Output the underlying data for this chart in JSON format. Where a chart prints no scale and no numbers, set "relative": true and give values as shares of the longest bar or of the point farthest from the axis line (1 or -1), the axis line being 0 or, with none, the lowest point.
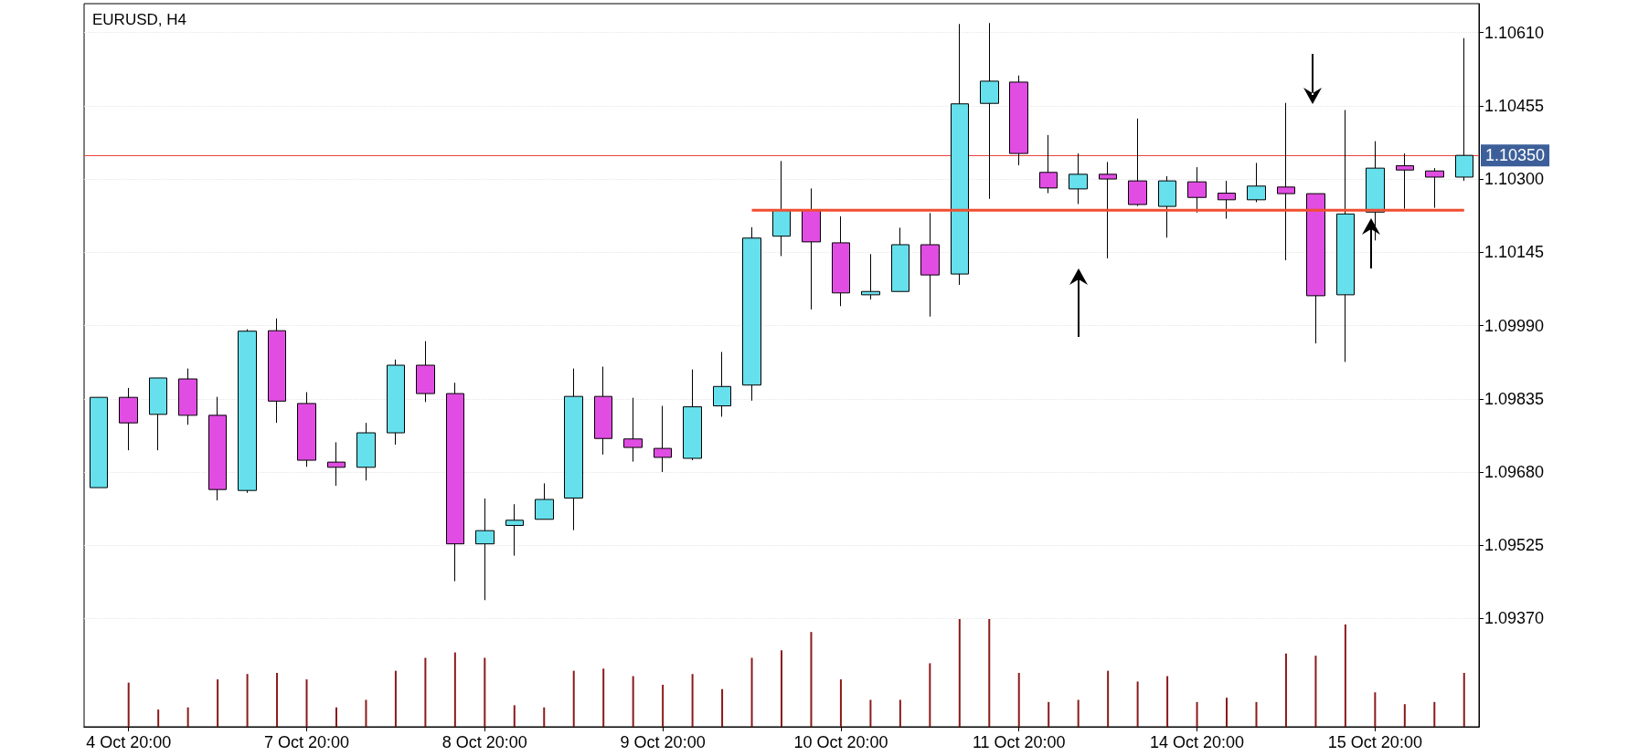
{
  "chart_data": [
    {
      "type": "candlestick",
      "title": "EURUSD, H4",
      "categories": [
        null,
        "4 Oct 20:00",
        null,
        null,
        null,
        null,
        null,
        "7 Oct 20:00",
        null,
        null,
        null,
        null,
        null,
        "8 Oct 20:00",
        null,
        null,
        null,
        null,
        null,
        "9 Oct 20:00",
        null,
        null,
        null,
        null,
        null,
        "10 Oct 20:00",
        null,
        null,
        null,
        null,
        null,
        "11 Oct 20:00",
        null,
        null,
        null,
        null,
        null,
        "14 Oct 20:00",
        null,
        null,
        null,
        null,
        null,
        "15 Oct 20:00",
        null,
        null,
        null
      ],
      "ohlc": [
        [
          1.09647,
          1.09838,
          1.09647,
          1.09838
        ],
        [
          1.09838,
          1.09858,
          1.09726,
          1.09784
        ],
        [
          1.09802,
          1.09879,
          1.09726,
          1.09879
        ],
        [
          1.09877,
          1.09899,
          1.0978,
          1.098
        ],
        [
          1.098,
          1.09839,
          1.0962,
          1.09643
        ],
        [
          1.09641,
          1.09982,
          1.09636,
          1.09978
        ],
        [
          1.09979,
          1.10005,
          1.09784,
          1.0983
        ],
        [
          1.09825,
          1.09849,
          1.09691,
          1.09705
        ],
        [
          1.09701,
          1.09743,
          1.09651,
          1.0969
        ],
        [
          1.0969,
          1.09784,
          1.09662,
          1.09763
        ],
        [
          1.09763,
          1.09918,
          1.09738,
          1.09906
        ],
        [
          1.09906,
          1.09957,
          1.09828,
          1.09846
        ],
        [
          1.09846,
          1.09869,
          1.09449,
          1.09528
        ],
        [
          1.09528,
          1.09624,
          1.09409,
          1.09556
        ],
        [
          1.09567,
          1.09612,
          1.09503,
          1.09578
        ],
        [
          1.0958,
          1.09656,
          1.0958,
          1.09622
        ],
        [
          1.09625,
          1.09899,
          1.09557,
          1.0984
        ],
        [
          1.0984,
          1.09903,
          1.09717,
          1.09751
        ],
        [
          1.0975,
          1.09837,
          1.09702,
          1.09732
        ],
        [
          1.0973,
          1.0982,
          1.0968,
          1.09711
        ],
        [
          1.09709,
          1.09897,
          1.09705,
          1.09818
        ],
        [
          1.0982,
          1.09934,
          1.09797,
          1.09861
        ],
        [
          1.09864,
          1.10198,
          1.09831,
          1.10175
        ],
        [
          1.10179,
          1.10338,
          1.10137,
          1.10234
        ],
        [
          1.10234,
          1.1028,
          1.10024,
          1.10167
        ],
        [
          1.10165,
          1.10221,
          1.10031,
          1.10059
        ],
        [
          1.10055,
          1.10141,
          1.10045,
          1.10062
        ],
        [
          1.10062,
          1.10197,
          1.10062,
          1.10161
        ],
        [
          1.10161,
          1.10228,
          1.10009,
          1.10097
        ],
        [
          1.10099,
          1.10628,
          1.10076,
          1.10459
        ],
        [
          1.1046,
          1.1063,
          1.10258,
          1.10507
        ],
        [
          1.10505,
          1.10519,
          1.10329,
          1.10354
        ],
        [
          1.10314,
          1.10393,
          1.1027,
          1.10281
        ],
        [
          1.10279,
          1.10354,
          1.10247,
          1.1031
        ],
        [
          1.1031,
          1.10336,
          1.10132,
          1.103
        ],
        [
          1.10296,
          1.10428,
          1.10243,
          1.10246
        ],
        [
          1.10242,
          1.10306,
          1.10176,
          1.10296
        ],
        [
          1.10294,
          1.10325,
          1.10229,
          1.10261
        ],
        [
          1.1027,
          1.10296,
          1.10216,
          1.10256
        ],
        [
          1.10256,
          1.10334,
          1.10251,
          1.10285
        ],
        [
          1.10283,
          1.10461,
          1.10128,
          1.10269
        ],
        [
          1.10269,
          1.10269,
          1.09952,
          1.10053
        ],
        [
          1.10055,
          1.10446,
          1.09913,
          1.10226
        ],
        [
          1.1023,
          1.1038,
          1.1017,
          1.10323
        ],
        [
          1.10328,
          1.10354,
          1.10237,
          1.10319
        ],
        [
          1.10317,
          1.10323,
          1.10239,
          1.10304
        ],
        [
          1.10304,
          1.10598,
          1.10296,
          1.1035
        ]
      ],
      "colors": [
        "#66e0ec",
        "#e14de3",
        "#66e0ec",
        "#e14de3",
        "#e14de3",
        "#66e0ec",
        "#e14de3",
        "#e14de3",
        "#e14de3",
        "#66e0ec",
        "#66e0ec",
        "#e14de3",
        "#e14de3",
        "#66e0ec",
        "#66e0ec",
        "#66e0ec",
        "#66e0ec",
        "#e14de3",
        "#e14de3",
        "#e14de3",
        "#66e0ec",
        "#66e0ec",
        "#66e0ec",
        "#66e0ec",
        "#e14de3",
        "#e14de3",
        "#66e0ec",
        "#66e0ec",
        "#e14de3",
        "#66e0ec",
        "#66e0ec",
        "#e14de3",
        "#e14de3",
        "#66e0ec",
        "#e14de3",
        "#e14de3",
        "#66e0ec",
        "#e14de3",
        "#e14de3",
        "#66e0ec",
        "#e14de3",
        "#e14de3",
        "#66e0ec",
        "#66e0ec",
        "#e14de3",
        "#e14de3",
        "#66e0ec"
      ],
      "series": [
        {
          "type": "line",
          "color": "#f04e30",
          "marker": "none",
          "values": [
            null,
            null,
            null,
            null,
            null,
            null,
            null,
            null,
            null,
            null,
            null,
            null,
            null,
            null,
            null,
            null,
            null,
            null,
            null,
            null,
            null,
            null,
            1.10234,
            1.10234,
            1.10234,
            1.10234,
            1.10234,
            1.10234,
            1.10234,
            1.10234,
            1.10234,
            1.10234,
            1.10234,
            1.10234,
            1.10234,
            1.10234,
            1.10234,
            1.10234,
            1.10234,
            1.10234,
            1.10234,
            1.10234,
            1.10234,
            1.10234,
            1.10234,
            1.10234,
            1.10234
          ]
        }
      ],
      "ylim": [
        1.09141,
        1.10671
      ],
      "yticks": [
        {
          "value": 1.0937,
          "label": "1.09370"
        },
        {
          "value": 1.09525,
          "label": "1.09525"
        },
        {
          "value": 1.0968,
          "label": "1.09680"
        },
        {
          "value": 1.09835,
          "label": "1.09835"
        },
        {
          "value": 1.0999,
          "label": "1.09990"
        },
        {
          "value": 1.10145,
          "label": "1.10145"
        },
        {
          "value": 1.103,
          "label": "1.10300"
        },
        {
          "value": 1.10455,
          "label": "1.10455"
        },
        {
          "value": 1.1061,
          "label": "1.10610"
        }
      ],
      "ref_lines": [
        {
          "axis": "y",
          "value": 1.1035,
          "label": "1.10350",
          "color": "#e8453c"
        }
      ],
      "grid": "y"
    },
    {
      "type": "bar",
      "relative": true,
      "color": "#8b1a1a",
      "categories": [
        null,
        null,
        null,
        null,
        null,
        null,
        null,
        null,
        null,
        null,
        null,
        null,
        null,
        null,
        null,
        null,
        null,
        null,
        null,
        null,
        null,
        null,
        null,
        null,
        null,
        null,
        null,
        null,
        null,
        null,
        null,
        null,
        null,
        null,
        null,
        null,
        null,
        null,
        null,
        null,
        null,
        null,
        null,
        null,
        null,
        null,
        null
      ],
      "values": [
        null,
        0.41,
        0.16,
        0.18,
        0.44,
        0.49,
        0.5,
        0.44,
        0.18,
        0.25,
        0.52,
        0.64,
        0.69,
        0.64,
        0.2,
        0.18,
        0.52,
        0.54,
        0.47,
        0.39,
        0.49,
        0.35,
        0.64,
        0.71,
        0.88,
        0.44,
        0.25,
        0.25,
        0.59,
        1,
        1,
        0.5,
        0.23,
        0.25,
        0.52,
        0.42,
        0.47,
        0.23,
        0.27,
        0.23,
        0.68,
        0.66,
        0.95,
        0.32,
        0.21,
        0.23,
        0.5
      ]
    }
  ]
}
